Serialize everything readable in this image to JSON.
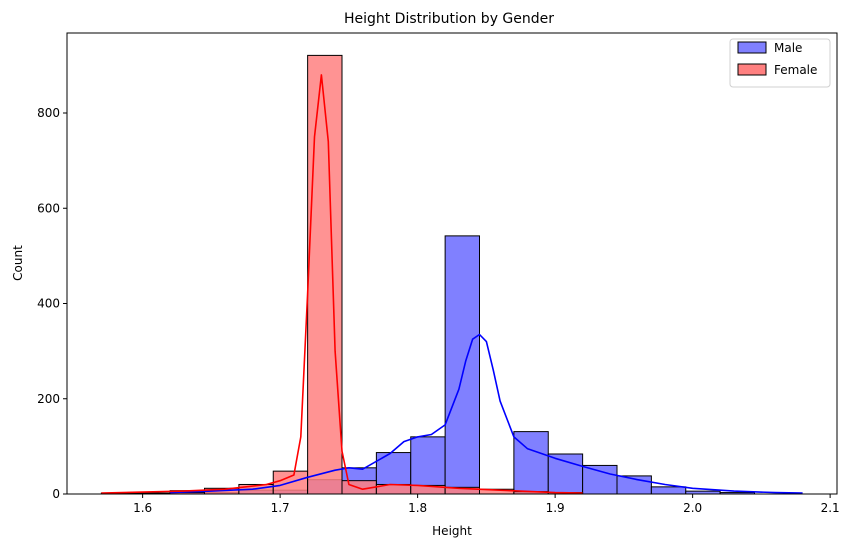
{
  "chart_data": {
    "type": "histogram",
    "title": "Height Distribution by Gender",
    "xlabel": "Height",
    "ylabel": "Count",
    "xlim": [
      1.545,
      2.105
    ],
    "ylim": [
      0,
      968
    ],
    "x_ticks": [
      1.6,
      1.7,
      1.8,
      1.9,
      2.0,
      2.1
    ],
    "x_tick_labels": [
      "1.6",
      "1.7",
      "1.8",
      "1.9",
      "2.0",
      "2.1"
    ],
    "y_ticks": [
      0,
      200,
      400,
      600,
      800
    ],
    "y_tick_labels": [
      "0",
      "200",
      "400",
      "600",
      "800"
    ],
    "legend": {
      "position": "top-right",
      "entries": [
        "Male",
        "Female"
      ]
    },
    "grid": false,
    "series": [
      {
        "name": "Male",
        "color": "#0000ff",
        "bar_fill": "#8080ff",
        "bins": [
          {
            "x0": 1.62,
            "x1": 1.645,
            "count": 7
          },
          {
            "x0": 1.645,
            "x1": 1.67,
            "count": 3
          },
          {
            "x0": 1.67,
            "x1": 1.695,
            "count": 8
          },
          {
            "x0": 1.695,
            "x1": 1.72,
            "count": 8
          },
          {
            "x0": 1.72,
            "x1": 1.745,
            "count": 30
          },
          {
            "x0": 1.745,
            "x1": 1.77,
            "count": 55
          },
          {
            "x0": 1.77,
            "x1": 1.795,
            "count": 87
          },
          {
            "x0": 1.795,
            "x1": 1.82,
            "count": 120
          },
          {
            "x0": 1.82,
            "x1": 1.845,
            "count": 542
          },
          {
            "x0": 1.845,
            "x1": 1.87,
            "count": 0
          },
          {
            "x0": 1.87,
            "x1": 1.895,
            "count": 131
          },
          {
            "x0": 1.895,
            "x1": 1.92,
            "count": 84
          },
          {
            "x0": 1.92,
            "x1": 1.945,
            "count": 60
          },
          {
            "x0": 1.945,
            "x1": 1.97,
            "count": 38
          },
          {
            "x0": 1.97,
            "x1": 1.995,
            "count": 15
          },
          {
            "x0": 1.995,
            "x1": 2.02,
            "count": 6
          },
          {
            "x0": 2.02,
            "x1": 2.045,
            "count": 3
          }
        ],
        "kde": {
          "x": [
            1.62,
            1.65,
            1.68,
            1.7,
            1.72,
            1.74,
            1.75,
            1.76,
            1.78,
            1.79,
            1.8,
            1.81,
            1.82,
            1.83,
            1.835,
            1.84,
            1.845,
            1.85,
            1.855,
            1.86,
            1.87,
            1.88,
            1.89,
            1.9,
            1.92,
            1.94,
            1.96,
            1.98,
            2.0,
            2.03,
            2.06,
            2.08
          ],
          "y": [
            3,
            6,
            10,
            18,
            35,
            50,
            55,
            52,
            85,
            110,
            120,
            125,
            145,
            220,
            280,
            325,
            335,
            320,
            260,
            195,
            120,
            95,
            85,
            75,
            58,
            42,
            30,
            20,
            12,
            6,
            3,
            2
          ]
        }
      },
      {
        "name": "Female",
        "color": "#ff0000",
        "bar_fill": "#ff8080",
        "bins": [
          {
            "x0": 1.57,
            "x1": 1.595,
            "count": 2
          },
          {
            "x0": 1.595,
            "x1": 1.62,
            "count": 2
          },
          {
            "x0": 1.62,
            "x1": 1.645,
            "count": 3
          },
          {
            "x0": 1.645,
            "x1": 1.67,
            "count": 12
          },
          {
            "x0": 1.67,
            "x1": 1.695,
            "count": 20
          },
          {
            "x0": 1.695,
            "x1": 1.72,
            "count": 48
          },
          {
            "x0": 1.72,
            "x1": 1.745,
            "count": 921
          },
          {
            "x0": 1.745,
            "x1": 1.77,
            "count": 28
          },
          {
            "x0": 1.77,
            "x1": 1.795,
            "count": 20
          },
          {
            "x0": 1.795,
            "x1": 1.82,
            "count": 18
          },
          {
            "x0": 1.82,
            "x1": 1.845,
            "count": 14
          },
          {
            "x0": 1.845,
            "x1": 1.87,
            "count": 10
          },
          {
            "x0": 1.87,
            "x1": 1.895,
            "count": 5
          },
          {
            "x0": 1.895,
            "x1": 1.92,
            "count": 3
          }
        ],
        "kde": {
          "x": [
            1.57,
            1.6,
            1.63,
            1.66,
            1.69,
            1.7,
            1.71,
            1.715,
            1.72,
            1.725,
            1.73,
            1.735,
            1.74,
            1.745,
            1.75,
            1.76,
            1.78,
            1.8,
            1.83,
            1.86,
            1.9,
            1.92
          ],
          "y": [
            2,
            4,
            6,
            10,
            20,
            28,
            40,
            120,
            420,
            750,
            880,
            740,
            300,
            90,
            20,
            10,
            20,
            18,
            12,
            8,
            3,
            2
          ]
        }
      }
    ]
  }
}
